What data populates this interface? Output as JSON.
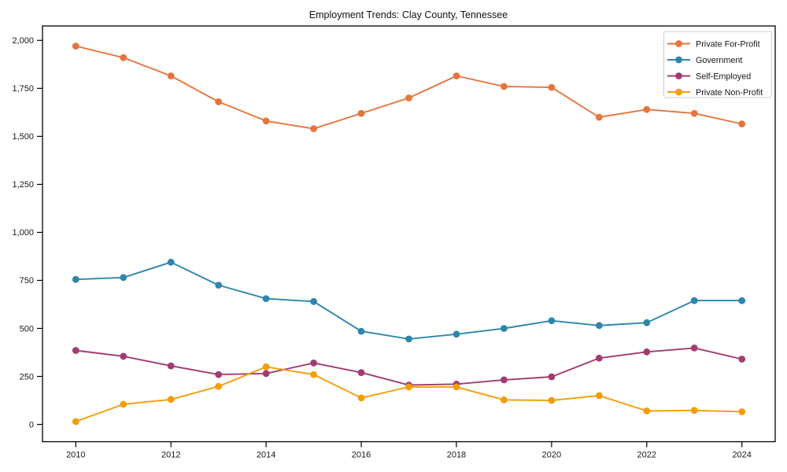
{
  "chart_data": {
    "type": "line",
    "title": "Employment Trends: Clay County, Tennessee",
    "xlabel": "",
    "ylabel": "",
    "x": [
      2010,
      2011,
      2012,
      2013,
      2014,
      2015,
      2016,
      2017,
      2018,
      2019,
      2020,
      2021,
      2022,
      2023,
      2024
    ],
    "series": [
      {
        "name": "Private For-Profit",
        "color": "#E7743C",
        "values": [
          1970,
          1910,
          1815,
          1680,
          1580,
          1540,
          1620,
          1700,
          1815,
          1760,
          1755,
          1600,
          1640,
          1620,
          1565
        ]
      },
      {
        "name": "Government",
        "color": "#2E86AB",
        "values": [
          755,
          765,
          845,
          725,
          655,
          640,
          485,
          445,
          470,
          500,
          540,
          515,
          530,
          645,
          645
        ]
      },
      {
        "name": "Self-Employed",
        "color": "#A23B72",
        "values": [
          385,
          355,
          305,
          260,
          265,
          320,
          270,
          205,
          210,
          232,
          248,
          345,
          378,
          398,
          340
        ]
      },
      {
        "name": "Private Non-Profit",
        "color": "#F39D0A",
        "values": [
          15,
          105,
          130,
          198,
          300,
          260,
          138,
          195,
          195,
          128,
          125,
          150,
          70,
          73,
          66
        ]
      }
    ],
    "xlim": [
      2009.3,
      2024.7
    ],
    "ylim": [
      -90,
      2075
    ],
    "xticks": {
      "values": [
        2010,
        2012,
        2014,
        2016,
        2018,
        2020,
        2022,
        2024
      ],
      "labels": [
        "2010",
        "2012",
        "2014",
        "2016",
        "2018",
        "2020",
        "2022",
        "2024"
      ]
    },
    "yticks": {
      "values": [
        0,
        250,
        500,
        750,
        1000,
        1250,
        1500,
        1750,
        2000
      ],
      "labels": [
        "0",
        "250",
        "500",
        "750",
        "1,000",
        "1,250",
        "1,500",
        "1,750",
        "2,000"
      ]
    },
    "grid": false,
    "legend": {
      "position": "upper right"
    },
    "frame_color": "#000000"
  }
}
